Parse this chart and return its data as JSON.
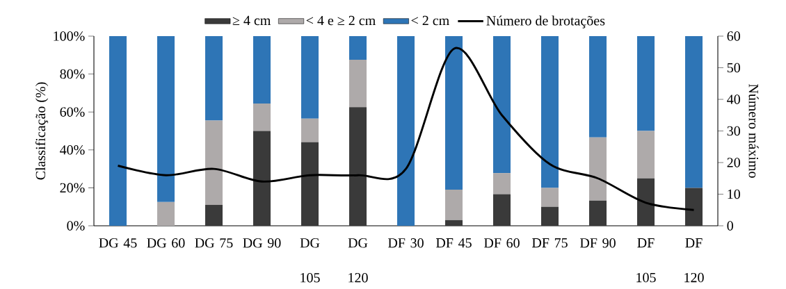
{
  "chart_data": {
    "type": "bar",
    "stacked": true,
    "legend": "top",
    "categories": [
      "DG 45",
      "DG 60",
      "DG 75",
      "DG 90",
      "DG 105",
      "DG 120",
      "DF 30",
      "DF 45",
      "DF 60",
      "DF 75",
      "DF 90",
      "DF 105",
      "DF 120"
    ],
    "series": [
      {
        "name": "≥ 4 cm",
        "color": "#3a3a3a",
        "values": [
          0,
          0,
          11,
          50,
          44,
          62.5,
          0,
          3,
          16.7,
          10,
          13.3,
          25,
          20
        ]
      },
      {
        "name": "< 4 e ≥ 2 cm",
        "color": "#aeaaaa",
        "values": [
          0,
          12.5,
          44.5,
          14.5,
          12.5,
          25,
          0,
          16,
          11.1,
          10,
          33.3,
          25,
          0
        ]
      },
      {
        "name": "< 2 cm",
        "color": "#2e75b6",
        "values": [
          100,
          87.5,
          44.5,
          35.5,
          43.5,
          12.5,
          100,
          81,
          72.2,
          80,
          53.4,
          50,
          80
        ]
      },
      {
        "name": "Número de brotações",
        "type": "line",
        "axis": "y2",
        "color": "#000000",
        "values": [
          19,
          16,
          18,
          14,
          16,
          16,
          18,
          56,
          35,
          19.5,
          15,
          7.3,
          5
        ]
      }
    ],
    "ylabel": "Classificação (%)",
    "y2label": "Número máximo",
    "ylim": [
      0,
      100
    ],
    "yticks": [
      {
        "value": 0,
        "label": "0%"
      },
      {
        "value": 20,
        "label": "20%"
      },
      {
        "value": 40,
        "label": "40%"
      },
      {
        "value": 60,
        "label": "60%"
      },
      {
        "value": 80,
        "label": "80%"
      },
      {
        "value": 100,
        "label": "100%"
      }
    ],
    "y2lim": [
      0,
      60
    ],
    "y2ticks": [
      0,
      10,
      20,
      30,
      40,
      50,
      60
    ]
  }
}
